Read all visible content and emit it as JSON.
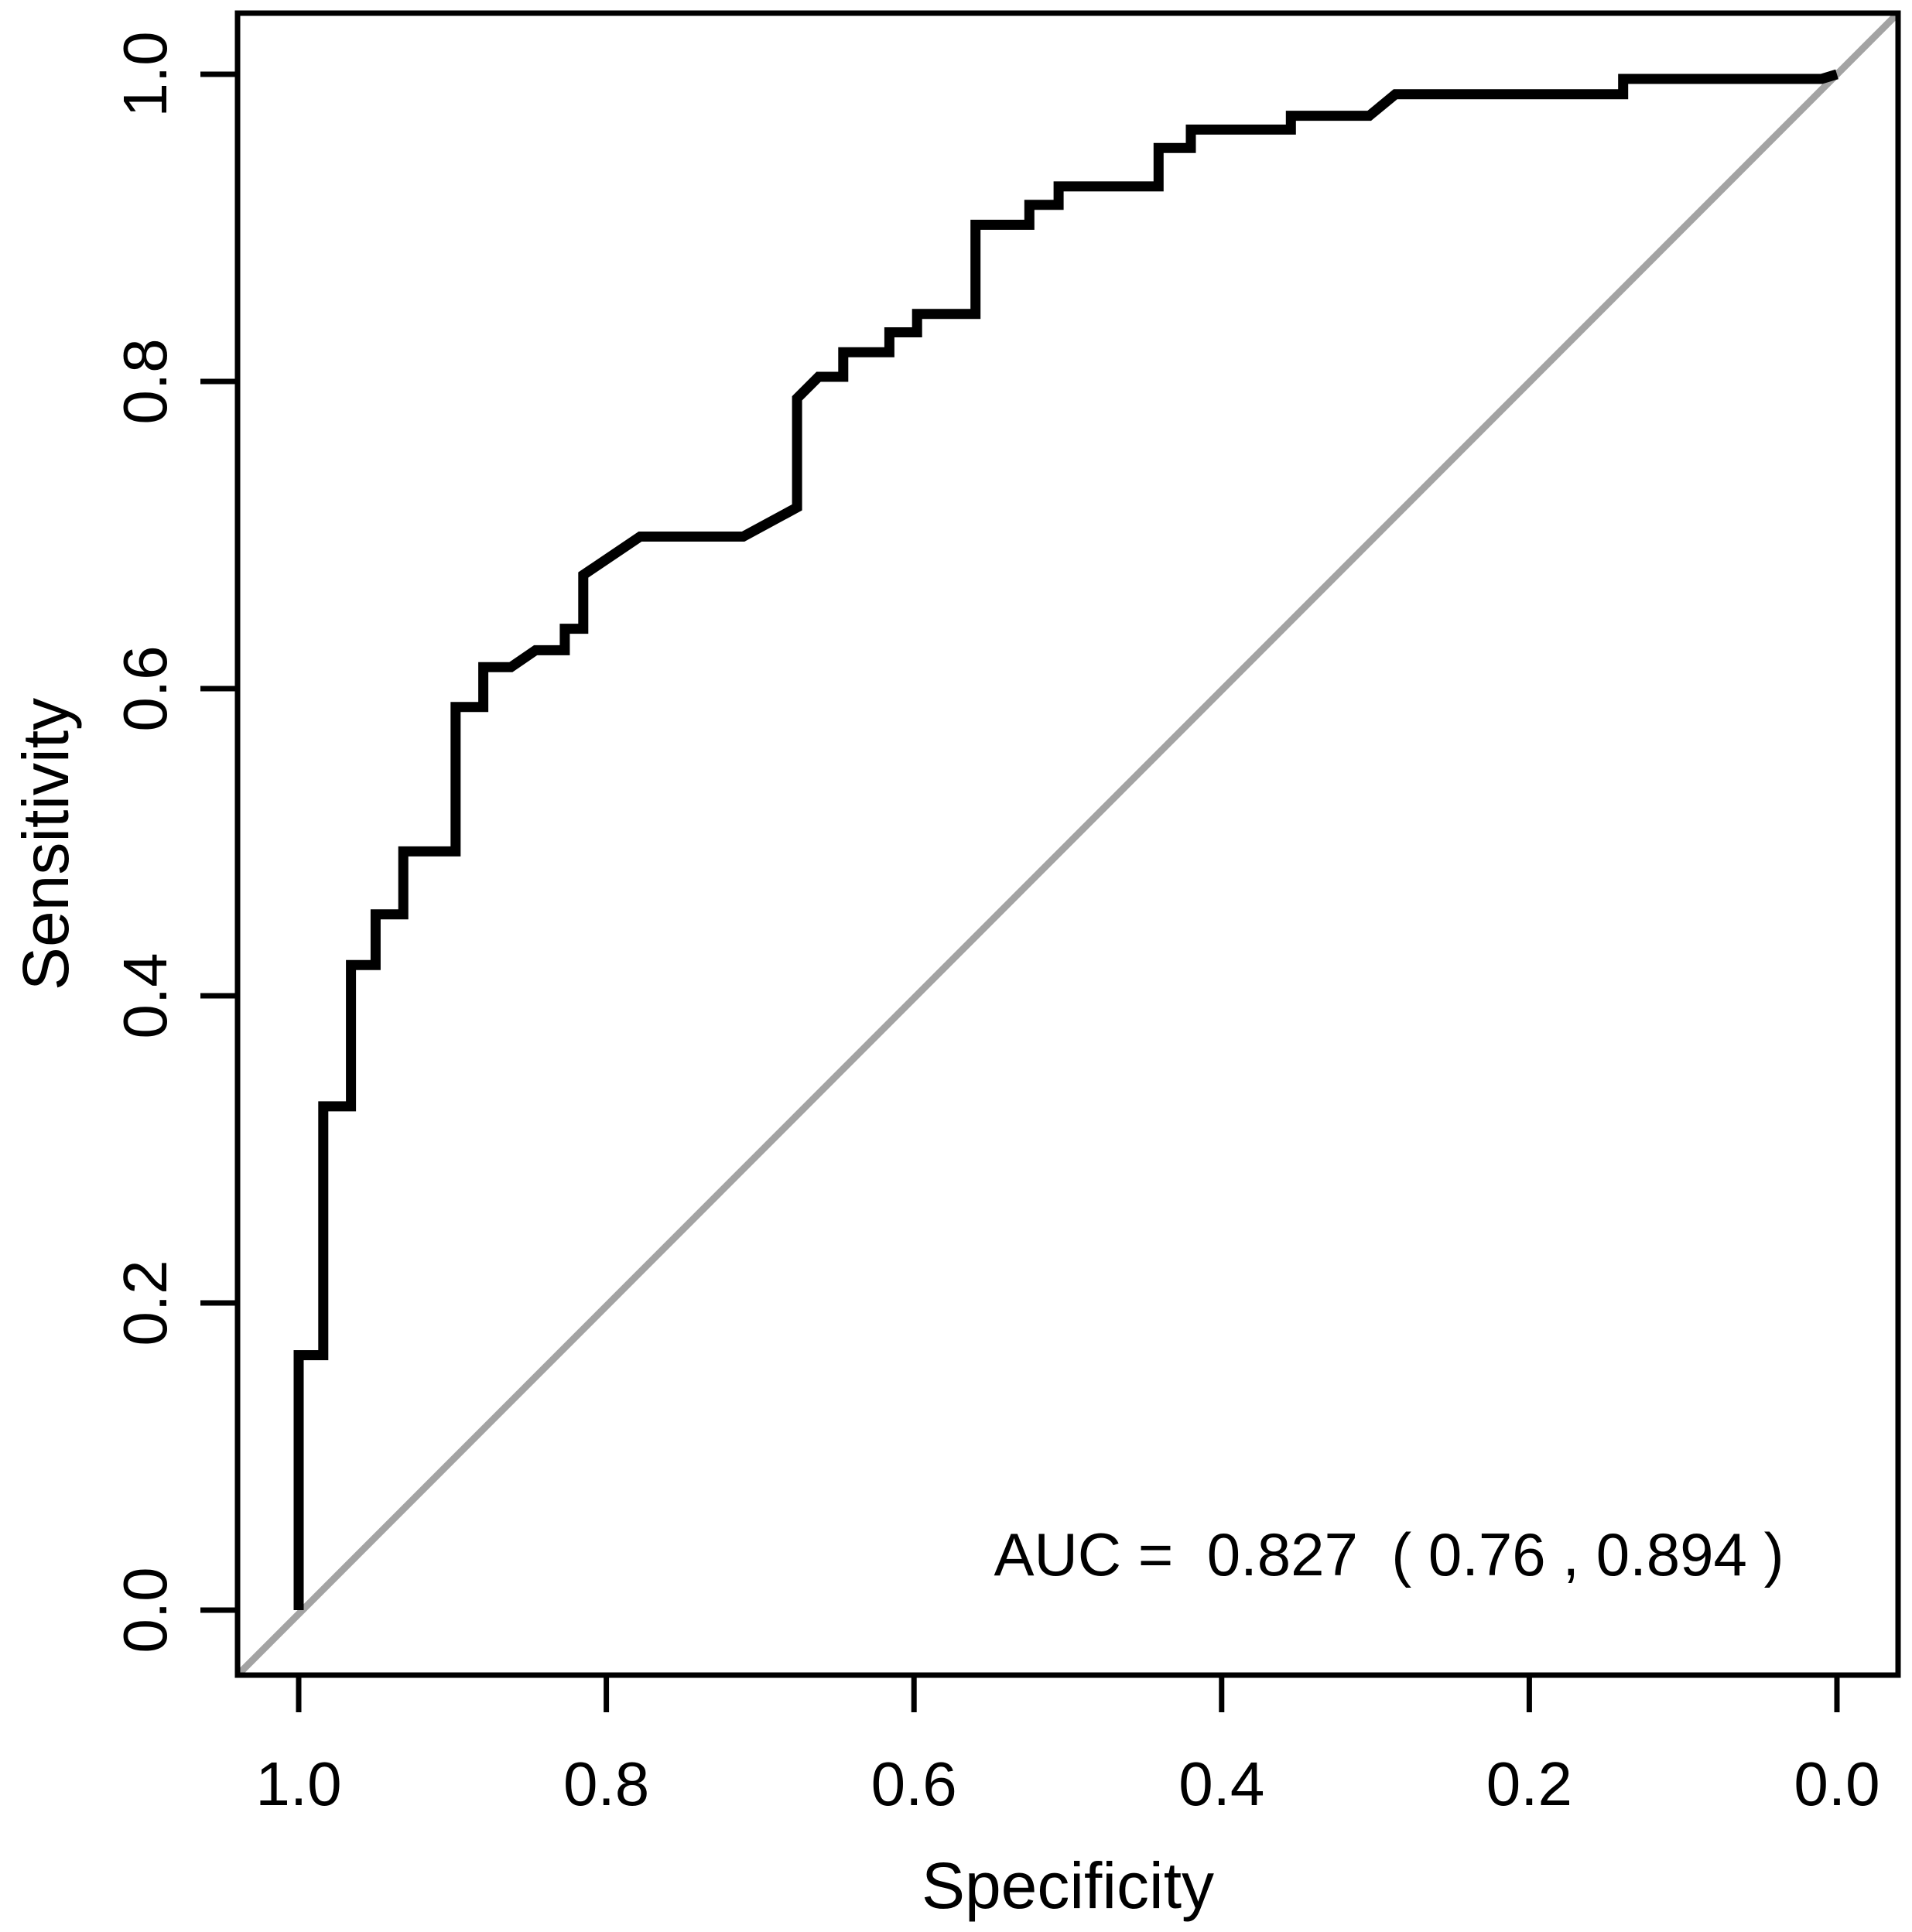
{
  "chart_data": {
    "type": "line",
    "subtype": "roc-curve",
    "title": "",
    "xlabel": "Specificity",
    "ylabel": "Sensitivity",
    "xlim": [
      1.0,
      0.0
    ],
    "ylim": [
      0.0,
      1.0
    ],
    "x_axis_reversed": true,
    "grid": false,
    "legend_position": "none",
    "x_tick_values": [
      1.0,
      0.8,
      0.6,
      0.4,
      0.2,
      0.0
    ],
    "x_tick_labels": [
      "1.0",
      "0.8",
      "0.6",
      "0.4",
      "0.2",
      "0.0"
    ],
    "y_tick_values": [
      0.0,
      0.2,
      0.4,
      0.6,
      0.8,
      1.0
    ],
    "y_tick_labels": [
      "0.0",
      "0.2",
      "0.4",
      "0.6",
      "0.8",
      "1.0"
    ],
    "annotation": "AUC =  0.827  ( 0.76 , 0.894 )",
    "auc": 0.827,
    "auc_ci_lower": 0.76,
    "auc_ci_upper": 0.894,
    "colors": {
      "roc_curve": "#000000",
      "reference_diagonal": "#a3a3a3",
      "axis": "#000000",
      "background": "#ffffff"
    },
    "series": [
      {
        "name": "ROC curve",
        "color": "#000000",
        "points_format": [
          "specificity",
          "sensitivity"
        ],
        "points": [
          [
            1.0,
            0.0
          ],
          [
            1.0,
            0.166
          ],
          [
            0.984,
            0.166
          ],
          [
            0.984,
            0.328
          ],
          [
            0.966,
            0.328
          ],
          [
            0.966,
            0.42
          ],
          [
            0.95,
            0.42
          ],
          [
            0.95,
            0.453
          ],
          [
            0.932,
            0.453
          ],
          [
            0.932,
            0.494
          ],
          [
            0.898,
            0.494
          ],
          [
            0.898,
            0.588
          ],
          [
            0.88,
            0.588
          ],
          [
            0.88,
            0.614
          ],
          [
            0.862,
            0.614
          ],
          [
            0.846,
            0.625
          ],
          [
            0.827,
            0.625
          ],
          [
            0.827,
            0.639
          ],
          [
            0.815,
            0.639
          ],
          [
            0.815,
            0.674
          ],
          [
            0.778,
            0.699
          ],
          [
            0.711,
            0.699
          ],
          [
            0.676,
            0.718
          ],
          [
            0.676,
            0.789
          ],
          [
            0.662,
            0.803
          ],
          [
            0.646,
            0.803
          ],
          [
            0.646,
            0.819
          ],
          [
            0.616,
            0.819
          ],
          [
            0.616,
            0.832
          ],
          [
            0.598,
            0.832
          ],
          [
            0.598,
            0.844
          ],
          [
            0.56,
            0.844
          ],
          [
            0.56,
            0.902
          ],
          [
            0.525,
            0.902
          ],
          [
            0.525,
            0.915
          ],
          [
            0.506,
            0.915
          ],
          [
            0.506,
            0.927
          ],
          [
            0.441,
            0.927
          ],
          [
            0.441,
            0.952
          ],
          [
            0.42,
            0.952
          ],
          [
            0.42,
            0.964
          ],
          [
            0.355,
            0.964
          ],
          [
            0.355,
            0.973
          ],
          [
            0.304,
            0.973
          ],
          [
            0.287,
            0.987
          ],
          [
            0.139,
            0.987
          ],
          [
            0.139,
            0.997
          ],
          [
            0.01,
            0.997
          ],
          [
            0.0,
            1.0
          ]
        ]
      },
      {
        "name": "Reference diagonal (chance line)",
        "color": "#a3a3a3",
        "points_format": [
          "specificity",
          "sensitivity"
        ],
        "points": [
          [
            1.0,
            0.0
          ],
          [
            0.0,
            1.0
          ]
        ]
      }
    ]
  }
}
